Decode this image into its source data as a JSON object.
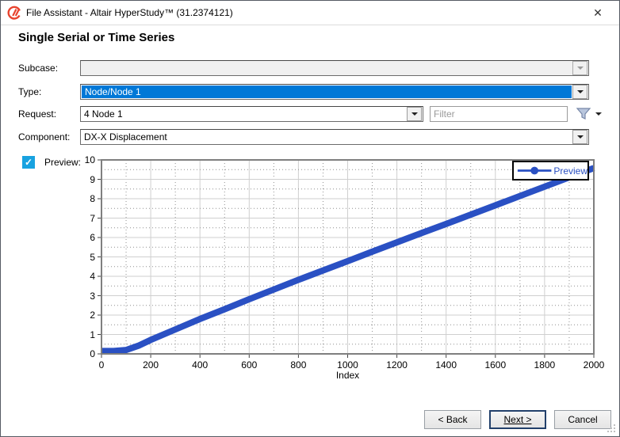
{
  "window": {
    "title": "File Assistant - Altair HyperStudy™ (31.2374121)",
    "close_glyph": "✕"
  },
  "heading": "Single Serial or Time Series",
  "form": {
    "subcase": {
      "label": "Subcase:",
      "value": "",
      "enabled": false
    },
    "type": {
      "label": "Type:",
      "value": "Node/Node 1",
      "selected": true
    },
    "request": {
      "label": "Request:",
      "value": "4 Node 1",
      "filter_placeholder": "Filter"
    },
    "component": {
      "label": "Component:",
      "value": "DX-X Displacement"
    },
    "preview": {
      "label": "Preview:",
      "checked": true
    }
  },
  "chart_data": {
    "type": "line",
    "title": "",
    "xlabel": "Index",
    "ylabel": "",
    "xlim": [
      0,
      2000
    ],
    "ylim": [
      0,
      10
    ],
    "x_ticks": [
      0,
      200,
      400,
      600,
      800,
      1000,
      1200,
      1400,
      1600,
      1800,
      2000
    ],
    "y_ticks": [
      0,
      1,
      2,
      3,
      4,
      5,
      6,
      7,
      8,
      9,
      10
    ],
    "x_minor_step": 100,
    "y_minor_step": 0.5,
    "grid": "major-solid-minor-dotted",
    "legend_position": "top-right",
    "series": [
      {
        "name": "Preview",
        "color": "#2a50c3",
        "line_width": 8,
        "x": [
          0,
          50,
          100,
          150,
          200,
          300,
          400,
          500,
          600,
          700,
          800,
          900,
          1000,
          1100,
          1200,
          1300,
          1400,
          1500,
          1600,
          1700,
          1800,
          1900,
          2000
        ],
        "y": [
          0.15,
          0.15,
          0.2,
          0.42,
          0.72,
          1.26,
          1.8,
          2.3,
          2.82,
          3.32,
          3.82,
          4.3,
          4.78,
          5.27,
          5.75,
          6.23,
          6.7,
          7.18,
          7.66,
          8.14,
          8.62,
          9.1,
          9.58
        ]
      }
    ]
  },
  "buttons": {
    "back": "< Back",
    "next": "Next >",
    "cancel": "Cancel"
  }
}
